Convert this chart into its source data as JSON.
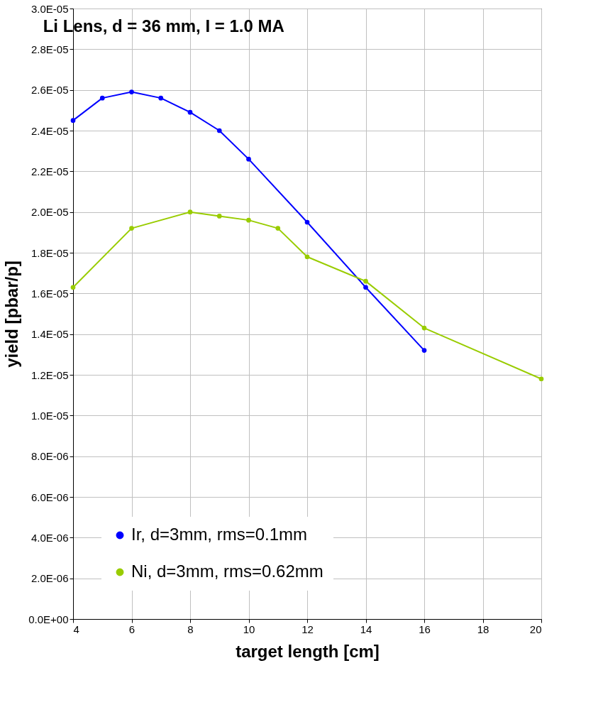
{
  "chart_data": {
    "type": "line",
    "title": "Li Lens, d = 36 mm, I = 1.0 MA",
    "xlabel": "target length [cm]",
    "ylabel": "yield [pbar/p]",
    "series": [
      {
        "name": "Ir, d=3mm, rms=0.1mm",
        "color": "#0000ff",
        "x": [
          4,
          5,
          6,
          7,
          8,
          9,
          10,
          12,
          14,
          16
        ],
        "values": [
          2.45e-05,
          2.56e-05,
          2.59e-05,
          2.56e-05,
          2.49e-05,
          2.4e-05,
          2.26e-05,
          1.95e-05,
          1.63e-05,
          1.32e-05
        ]
      },
      {
        "name": "Ni, d=3mm, rms=0.62mm",
        "color": "#99cc00",
        "x": [
          4,
          6,
          8,
          9,
          10,
          11,
          12,
          14,
          16,
          20
        ],
        "values": [
          1.63e-05,
          1.92e-05,
          2e-05,
          1.98e-05,
          1.96e-05,
          1.92e-05,
          1.78e-05,
          1.66e-05,
          1.43e-05,
          1.18e-05
        ]
      }
    ],
    "xlim": [
      4,
      20
    ],
    "xticks": [
      4,
      6,
      8,
      10,
      12,
      14,
      16,
      18,
      20
    ],
    "ylim": [
      0,
      3e-05
    ],
    "yticks": [
      {
        "value": 0,
        "label": "0.0E+00"
      },
      {
        "value": 2e-06,
        "label": "2.0E-06"
      },
      {
        "value": 4e-06,
        "label": "4.0E-06"
      },
      {
        "value": 6e-06,
        "label": "6.0E-06"
      },
      {
        "value": 8e-06,
        "label": "8.0E-06"
      },
      {
        "value": 1e-05,
        "label": "1.0E-05"
      },
      {
        "value": 1.2e-05,
        "label": "1.2E-05"
      },
      {
        "value": 1.4e-05,
        "label": "1.4E-05"
      },
      {
        "value": 1.6e-05,
        "label": "1.6E-05"
      },
      {
        "value": 1.8e-05,
        "label": "1.8E-05"
      },
      {
        "value": 2e-05,
        "label": "2.0E-05"
      },
      {
        "value": 2.2e-05,
        "label": "2.2E-05"
      },
      {
        "value": 2.4e-05,
        "label": "2.4E-05"
      },
      {
        "value": 2.6e-05,
        "label": "2.6E-05"
      },
      {
        "value": 2.8e-05,
        "label": "2.8E-05"
      },
      {
        "value": 3e-05,
        "label": "3.0E-05"
      }
    ],
    "grid": true,
    "legend": "bottom left",
    "marker": "circle",
    "line_style": "solid"
  }
}
